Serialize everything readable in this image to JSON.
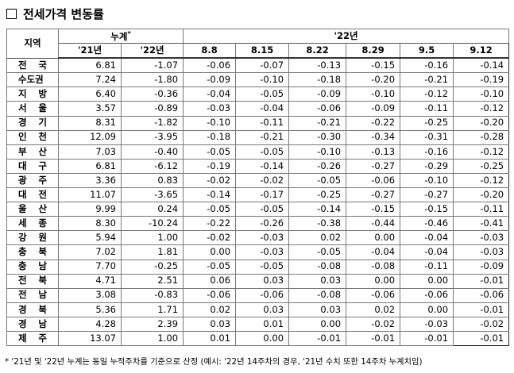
{
  "header": {
    "title": "전세가격 변동률"
  },
  "table": {
    "head1": [
      "지역",
      "누계",
      "'22년"
    ],
    "head1_mark": "*",
    "head2": [
      "'21년",
      "'22년",
      "8.8",
      "8.15",
      "8.22",
      "8.29",
      "9.5",
      "9.12"
    ],
    "rows": [
      [
        "전 국",
        "6.81",
        "-1.07",
        "-0.06",
        "-0.07",
        "-0.13",
        "-0.15",
        "-0.16",
        "-0.14"
      ],
      [
        "수도권",
        "7.24",
        "-1.80",
        "-0.09",
        "-0.10",
        "-0.18",
        "-0.20",
        "-0.21",
        "-0.19"
      ],
      [
        "지 방",
        "6.40",
        "-0.36",
        "-0.04",
        "-0.05",
        "-0.09",
        "-0.10",
        "-0.12",
        "-0.10"
      ],
      [
        "서 울",
        "3.57",
        "-0.89",
        "-0.03",
        "-0.04",
        "-0.06",
        "-0.09",
        "-0.11",
        "-0.12"
      ],
      [
        "경 기",
        "8.31",
        "-1.82",
        "-0.10",
        "-0.11",
        "-0.21",
        "-0.22",
        "-0.25",
        "-0.20"
      ],
      [
        "인 천",
        "12.09",
        "-3.95",
        "-0.18",
        "-0.21",
        "-0.30",
        "-0.34",
        "-0.31",
        "-0.28"
      ],
      [
        "부 산",
        "7.03",
        "-0.40",
        "-0.05",
        "-0.05",
        "-0.10",
        "-0.13",
        "-0.16",
        "-0.12"
      ],
      [
        "대 구",
        "6.81",
        "-6.12",
        "-0.19",
        "-0.14",
        "-0.26",
        "-0.27",
        "-0.29",
        "-0.25"
      ],
      [
        "광 주",
        "3.36",
        "0.83",
        "-0.02",
        "-0.02",
        "-0.05",
        "-0.06",
        "-0.10",
        "-0.12"
      ],
      [
        "대 전",
        "11.07",
        "-3.65",
        "-0.14",
        "-0.17",
        "-0.25",
        "-0.27",
        "-0.27",
        "-0.20"
      ],
      [
        "울 산",
        "9.99",
        "0.24",
        "-0.05",
        "-0.05",
        "-0.14",
        "-0.15",
        "-0.15",
        "-0.11"
      ],
      [
        "세 종",
        "8.30",
        "-10.24",
        "-0.22",
        "-0.26",
        "-0.38",
        "-0.44",
        "-0.46",
        "-0.41"
      ],
      [
        "강 원",
        "5.94",
        "1.00",
        "-0.02",
        "-0.03",
        "0.02",
        "0.00",
        "-0.04",
        "-0.03"
      ],
      [
        "충 북",
        "7.02",
        "1.81",
        "0.00",
        "-0.03",
        "-0.05",
        "-0.04",
        "-0.04",
        "-0.03"
      ],
      [
        "충 남",
        "7.70",
        "-0.25",
        "-0.05",
        "-0.05",
        "-0.08",
        "-0.08",
        "-0.11",
        "-0.09"
      ],
      [
        "전 북",
        "4.71",
        "2.51",
        "0.06",
        "0.03",
        "0.03",
        "0.00",
        "0.00",
        "-0.01"
      ],
      [
        "전 남",
        "3.08",
        "-0.83",
        "-0.06",
        "-0.06",
        "-0.08",
        "-0.06",
        "-0.06",
        "-0.06"
      ],
      [
        "경 북",
        "5.36",
        "1.71",
        "0.02",
        "0.03",
        "0.03",
        "0.02",
        "0.00",
        "-0.01"
      ],
      [
        "경 남",
        "4.28",
        "2.39",
        "0.03",
        "0.01",
        "0.00",
        "-0.02",
        "-0.03",
        "-0.02"
      ],
      [
        "제 주",
        "13.07",
        "1.00",
        "0.01",
        "0.00",
        "-0.01",
        "-0.01",
        "-0.01",
        "-0.01"
      ]
    ]
  },
  "footnote": "* '21년 및 '22년 누계는 동일 누적주차를 기준으로 산정 (예시: '22년 14주차의 경우, '21년 수치 또한 14주차 누계치임)"
}
